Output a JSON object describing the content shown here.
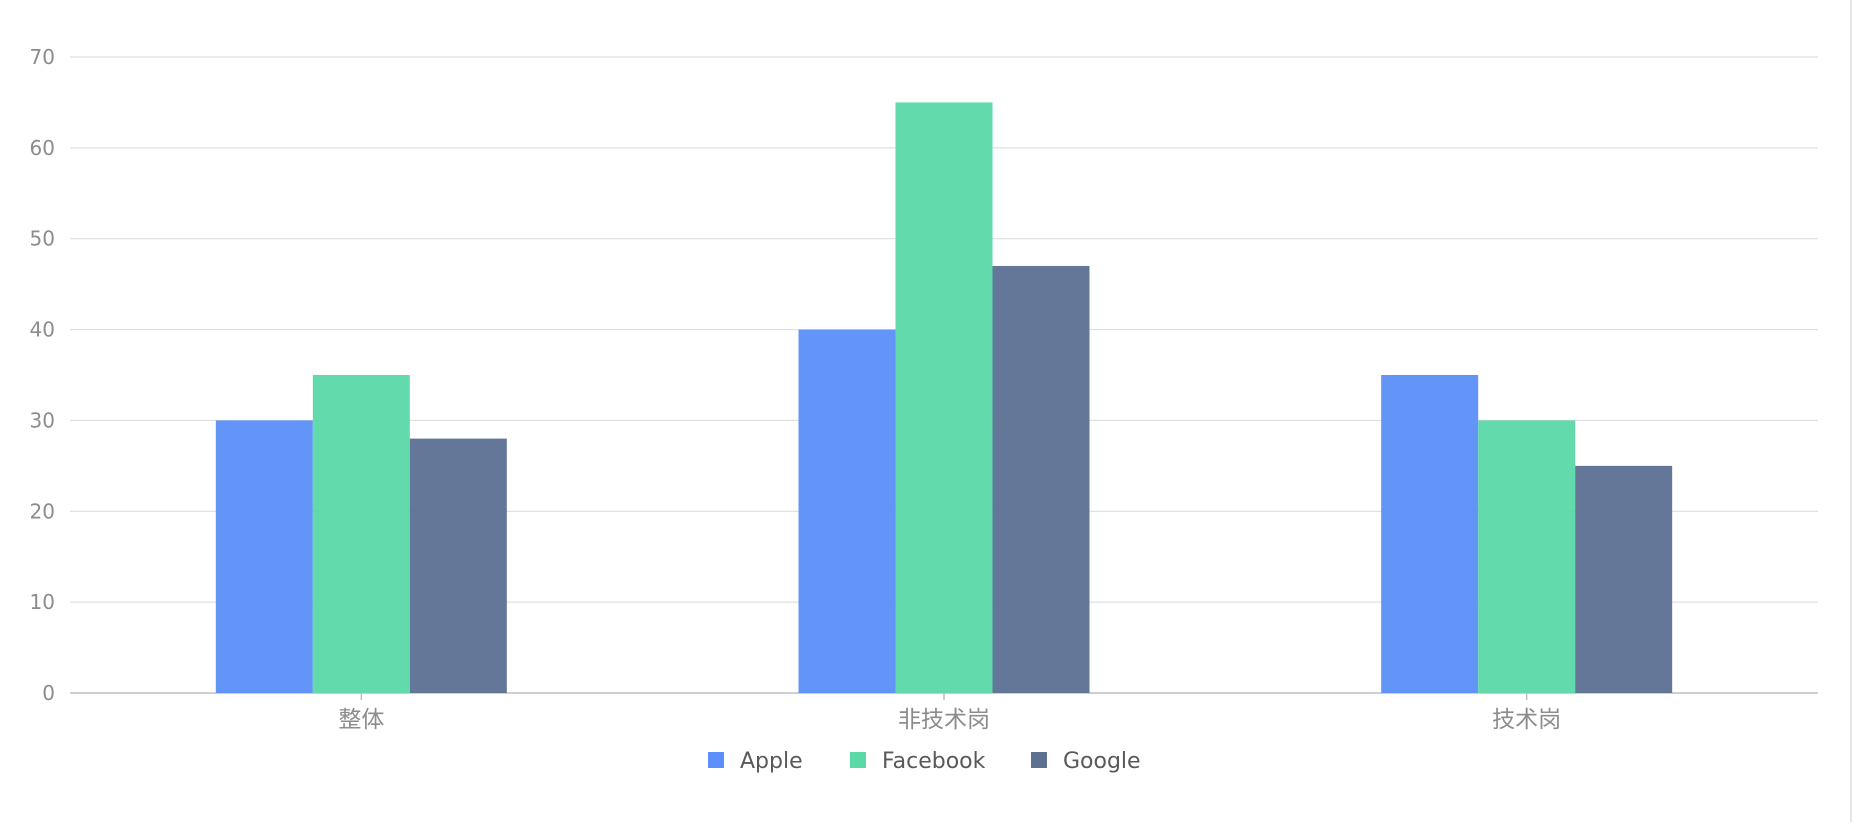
{
  "chart_data": {
    "type": "bar",
    "categories": [
      "整体",
      "非技术岗",
      "技术岗"
    ],
    "series": [
      {
        "name": "Apple",
        "values": [
          30,
          40,
          35
        ],
        "color": "#5b8ff9"
      },
      {
        "name": "Facebook",
        "values": [
          35,
          65,
          30
        ],
        "color": "#5ad8a6"
      },
      {
        "name": "Google",
        "values": [
          28,
          47,
          25
        ],
        "color": "#5d7092"
      }
    ],
    "yticks": [
      0,
      10,
      20,
      30,
      40,
      50,
      60,
      70
    ],
    "ylim": [
      0,
      70
    ],
    "grid": true,
    "legend": "bottom-center"
  }
}
